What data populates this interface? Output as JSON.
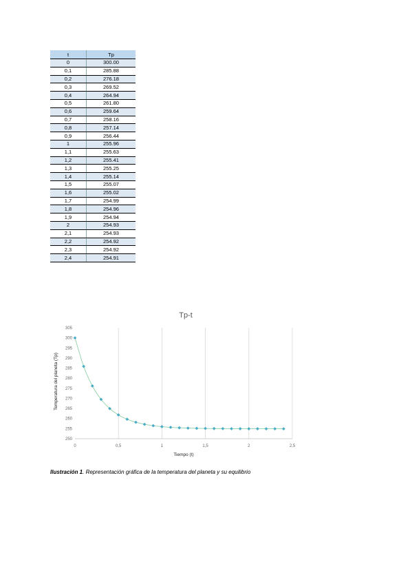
{
  "table": {
    "headers": [
      "t",
      "Tp"
    ],
    "rows": [
      [
        "0",
        "300.00"
      ],
      [
        "0,1",
        "285.88"
      ],
      [
        "0,2",
        "276.18"
      ],
      [
        "0,3",
        "269.52"
      ],
      [
        "0,4",
        "264.94"
      ],
      [
        "0,5",
        "261.80"
      ],
      [
        "0,6",
        "259.64"
      ],
      [
        "0,7",
        "258.16"
      ],
      [
        "0,8",
        "257.14"
      ],
      [
        "0,9",
        "256.44"
      ],
      [
        "1",
        "255.96"
      ],
      [
        "1,1",
        "255.63"
      ],
      [
        "1,2",
        "255.41"
      ],
      [
        "1,3",
        "255.25"
      ],
      [
        "1,4",
        "255.14"
      ],
      [
        "1,5",
        "255.07"
      ],
      [
        "1,6",
        "255.02"
      ],
      [
        "1,7",
        "254.99"
      ],
      [
        "1,8",
        "254.96"
      ],
      [
        "1,9",
        "254.94"
      ],
      [
        "2",
        "254.93"
      ],
      [
        "2,1",
        "254.93"
      ],
      [
        "2,2",
        "254.92"
      ],
      [
        "2,3",
        "254.92"
      ],
      [
        "2,4",
        "254.91"
      ]
    ]
  },
  "chart_data": {
    "type": "scatter",
    "title": "Tp-t",
    "xlabel": "Tiempo (t)",
    "ylabel": "Temperatura del planeta (Tp)",
    "xlim": [
      0,
      2.5
    ],
    "ylim": [
      250,
      305
    ],
    "grid": "vertical",
    "x_ticks": [
      "0",
      "0,5",
      "1",
      "1,5",
      "2",
      "2,5"
    ],
    "y_ticks": [
      "250",
      "255",
      "260",
      "265",
      "270",
      "275",
      "280",
      "285",
      "290",
      "295",
      "300",
      "305"
    ],
    "x": [
      0,
      0.1,
      0.2,
      0.3,
      0.4,
      0.5,
      0.6,
      0.7,
      0.8,
      0.9,
      1.0,
      1.1,
      1.2,
      1.3,
      1.4,
      1.5,
      1.6,
      1.7,
      1.8,
      1.9,
      2.0,
      2.1,
      2.2,
      2.3,
      2.4
    ],
    "y": [
      300.0,
      285.88,
      276.18,
      269.52,
      264.94,
      261.8,
      259.64,
      258.16,
      257.14,
      256.44,
      255.96,
      255.63,
      255.41,
      255.25,
      255.14,
      255.07,
      255.02,
      254.99,
      254.96,
      254.94,
      254.93,
      254.93,
      254.92,
      254.92,
      254.91
    ],
    "colors": {
      "marker": "#4bacc6",
      "line": "#8fd0a8",
      "grid": "#d9d9d9"
    }
  },
  "caption": {
    "label": "Ilustración 1",
    "text": ". Representación gráfica de la temperatura del planeta y su equilibrio"
  }
}
